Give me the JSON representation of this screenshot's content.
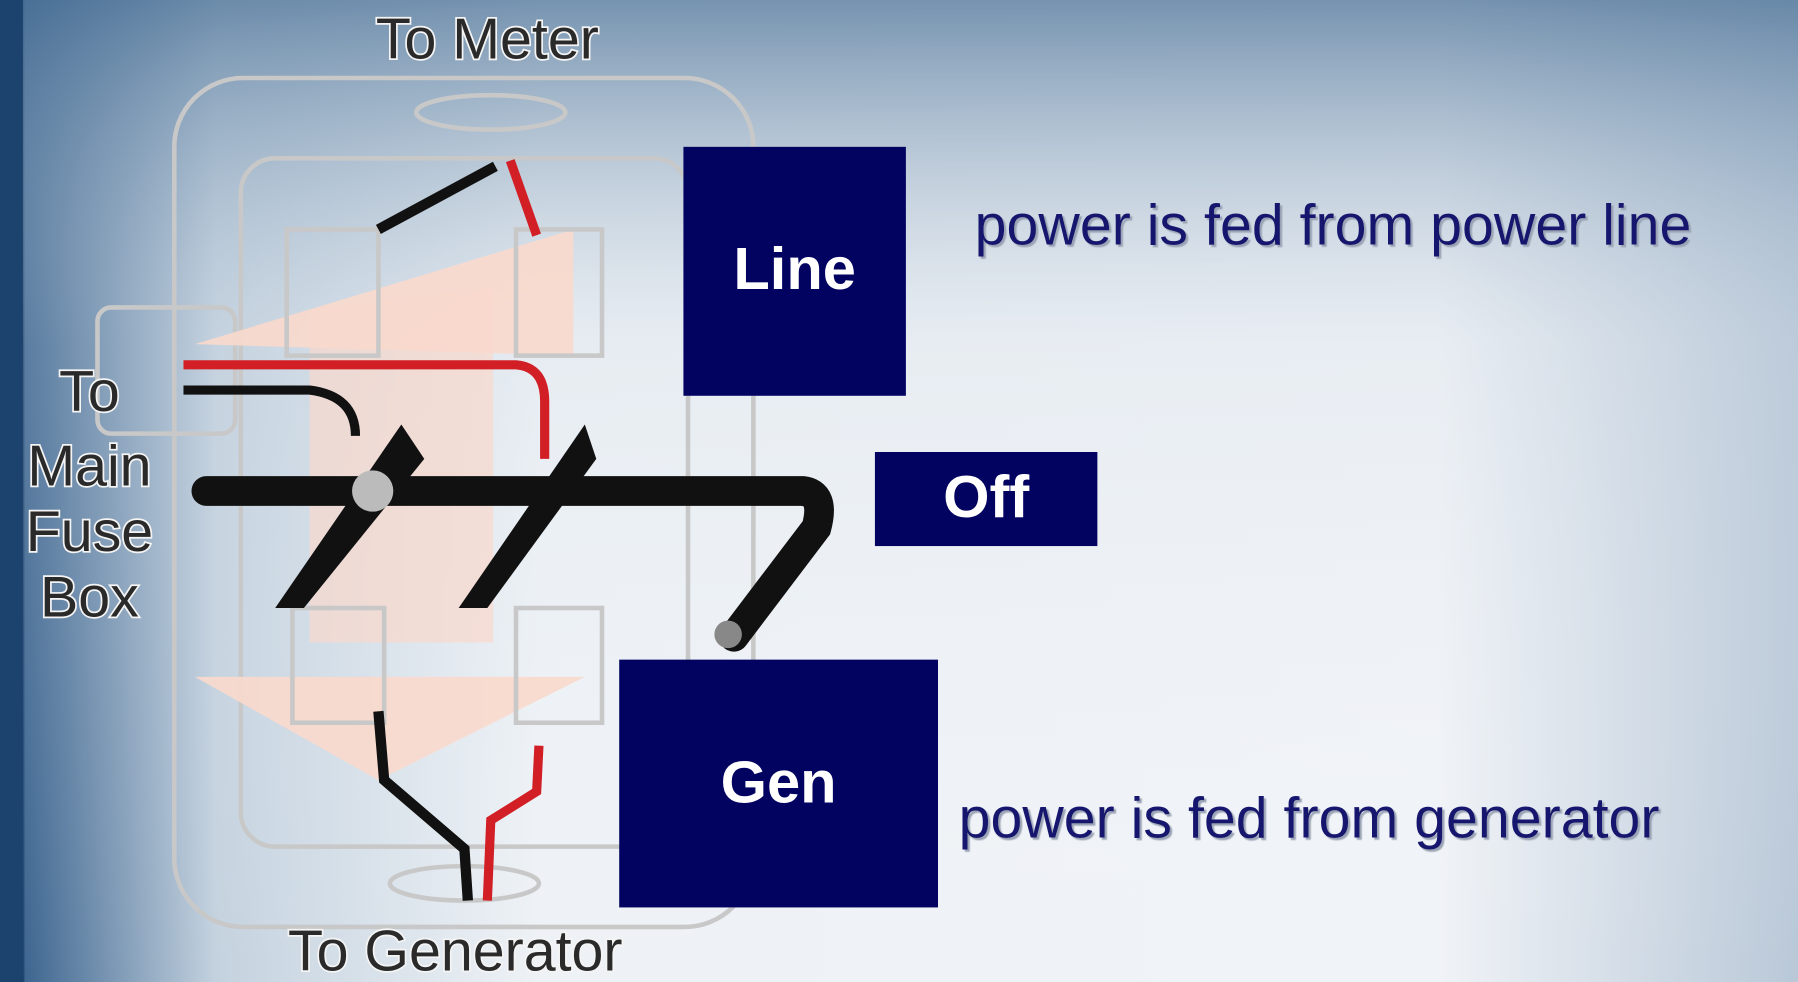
{
  "diagram": {
    "labels": {
      "to_meter": "To Meter",
      "to_fuse_box": [
        "To",
        "Main",
        "Fuse",
        "Box"
      ],
      "to_generator": "To Generator"
    },
    "positions": [
      {
        "label": "Line",
        "description": "power is fed from power line"
      },
      {
        "label": "Off"
      },
      {
        "label": "Gen",
        "description": "power is fed from generator"
      }
    ]
  }
}
